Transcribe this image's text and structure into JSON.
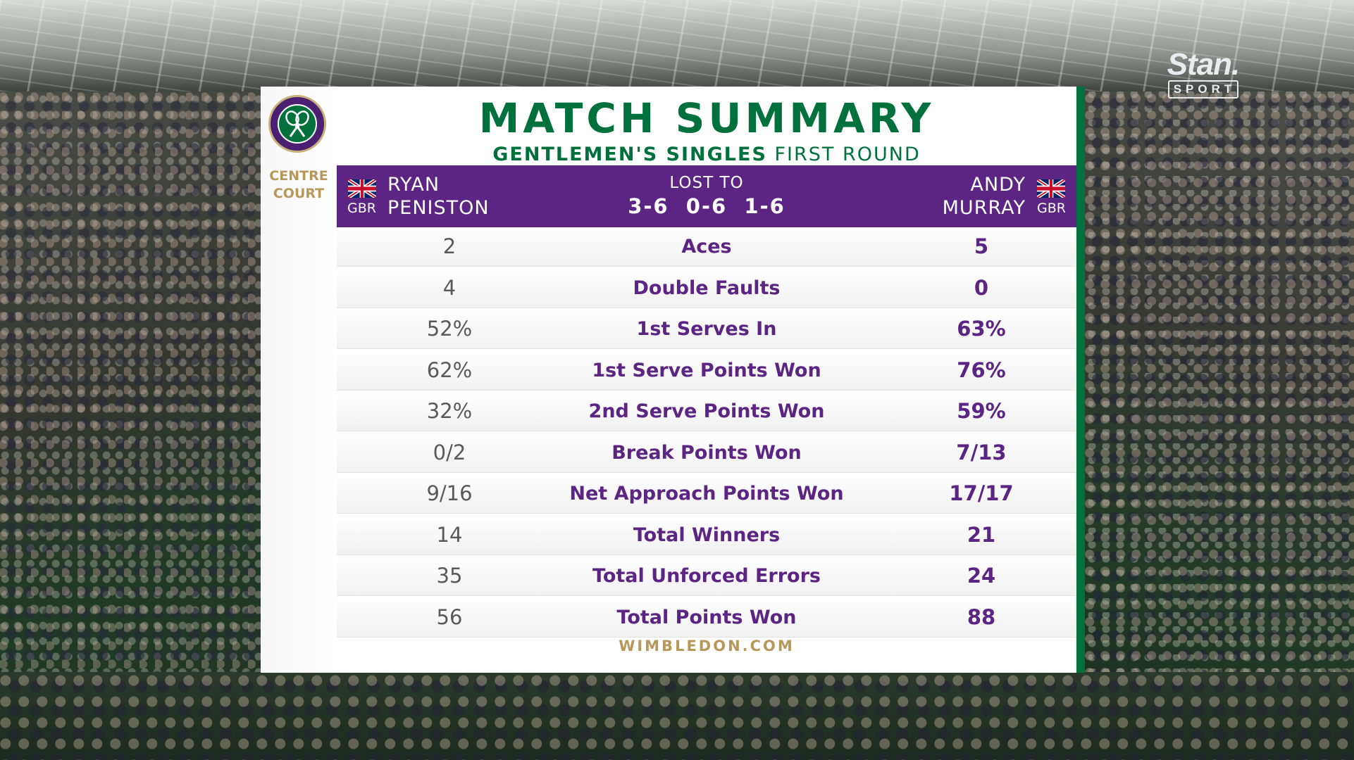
{
  "broadcaster": {
    "brand": "Stan.",
    "sub": "SPORT"
  },
  "venue": {
    "line1": "CENTRE",
    "line2": "COURT"
  },
  "title": "MATCH SUMMARY",
  "subtitle": {
    "event": "GENTLEMEN'S SINGLES",
    "round": "FIRST ROUND"
  },
  "players": {
    "left": {
      "first": "RYAN",
      "last": "PENISTON",
      "country": "GBR"
    },
    "right": {
      "first": "ANDY",
      "last": "MURRAY",
      "country": "GBR"
    }
  },
  "result": {
    "text": "LOST TO",
    "score": "3-6  0-6  1-6"
  },
  "stats": [
    {
      "label": "Aces",
      "left": "2",
      "right": "5"
    },
    {
      "label": "Double Faults",
      "left": "4",
      "right": "0"
    },
    {
      "label": "1st Serves In",
      "left": "52%",
      "right": "63%"
    },
    {
      "label": "1st Serve Points Won",
      "left": "62%",
      "right": "76%"
    },
    {
      "label": "2nd Serve Points Won",
      "left": "32%",
      "right": "59%"
    },
    {
      "label": "Break Points Won",
      "left": "0/2",
      "right": "7/13"
    },
    {
      "label": "Net Approach Points Won",
      "left": "9/16",
      "right": "17/17"
    },
    {
      "label": "Total Winners",
      "left": "14",
      "right": "21"
    },
    {
      "label": "Total Unforced Errors",
      "left": "35",
      "right": "24"
    },
    {
      "label": "Total Points Won",
      "left": "56",
      "right": "88"
    }
  ],
  "footer": "WIMBLEDON.COM",
  "colors": {
    "purple": "#5c2483",
    "green": "#00703c",
    "gold": "#b8975a"
  }
}
